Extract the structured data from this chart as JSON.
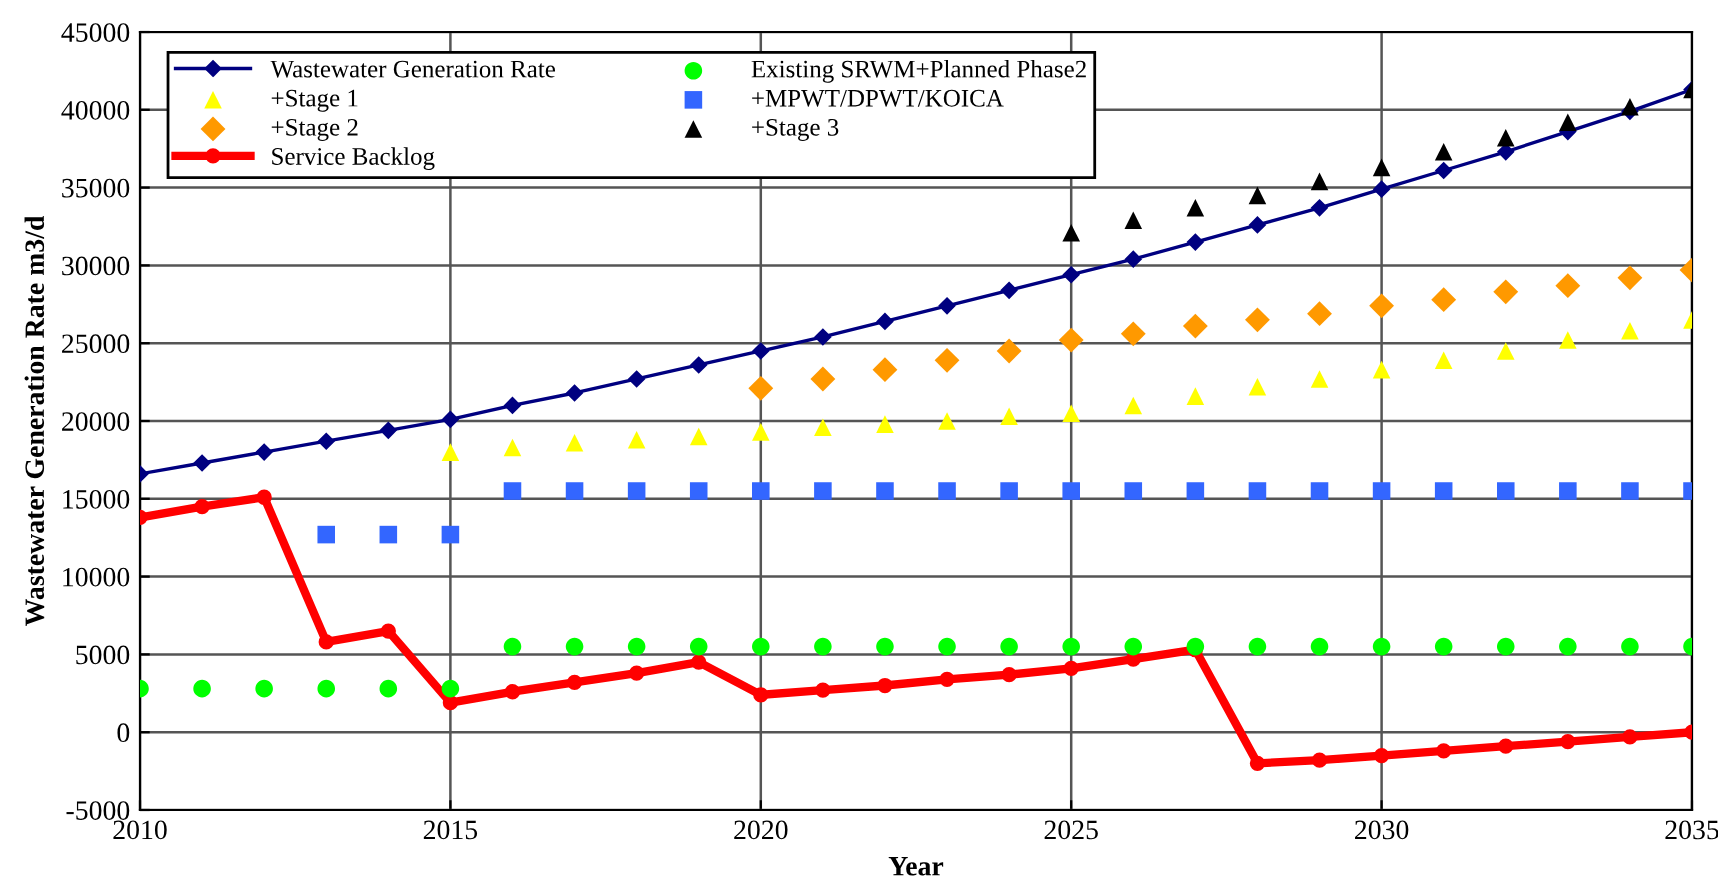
{
  "chart_data": {
    "type": "line",
    "xlabel": "Year",
    "ylabel": "Wastewater Generation Rate m3/d",
    "x": [
      2010,
      2011,
      2012,
      2013,
      2014,
      2015,
      2016,
      2017,
      2018,
      2019,
      2020,
      2021,
      2022,
      2023,
      2024,
      2025,
      2026,
      2027,
      2028,
      2029,
      2030,
      2031,
      2032,
      2033,
      2034,
      2035
    ],
    "xlim": [
      2010,
      2035
    ],
    "xticks": [
      2010,
      2015,
      2020,
      2025,
      2030,
      2035
    ],
    "ylim": [
      -5000,
      45000
    ],
    "yticks": [
      -5000,
      0,
      5000,
      10000,
      15000,
      20000,
      25000,
      30000,
      35000,
      40000,
      45000
    ],
    "grid": true,
    "legend": "top left",
    "series": [
      {
        "name": "Wastewater Generation Rate",
        "marker": "diamond",
        "color": "#000080",
        "values": [
          16600,
          17300,
          18000,
          18700,
          19400,
          20100,
          21000,
          21800,
          22700,
          23600,
          24500,
          25400,
          26400,
          27400,
          28400,
          29400,
          30400,
          31500,
          32600,
          33700,
          34900,
          36100,
          37300,
          38600,
          39900,
          41300
        ]
      },
      {
        "name": "+Stage 1",
        "type": "scatter",
        "marker": "triangle",
        "color": "#ffff00",
        "values": [
          null,
          null,
          null,
          null,
          null,
          18000,
          18300,
          18600,
          18800,
          19000,
          19300,
          19600,
          19800,
          20000,
          20300,
          20500,
          21000,
          21600,
          22200,
          22700,
          23300,
          23900,
          24500,
          25200,
          25800,
          26500
        ]
      },
      {
        "name": "+Stage 2",
        "type": "scatter",
        "marker": "diamond",
        "color": "#ff9900",
        "values": [
          null,
          null,
          null,
          null,
          null,
          null,
          null,
          null,
          null,
          null,
          22100,
          22700,
          23300,
          23900,
          24500,
          25200,
          25600,
          26100,
          26500,
          26900,
          27400,
          27800,
          28300,
          28700,
          29200,
          29700
        ]
      },
      {
        "name": "Service Backlog",
        "marker": "circle",
        "color": "#ff0000",
        "values": [
          13800,
          14500,
          15100,
          5800,
          6500,
          1900,
          2600,
          3200,
          3800,
          4500,
          2400,
          2700,
          3000,
          3400,
          3700,
          4100,
          4700,
          5300,
          -2000,
          -1800,
          -1500,
          -1200,
          -900,
          -600,
          -300,
          0
        ]
      },
      {
        "name": "Existing SRWM+Planned Phase2",
        "type": "scatter",
        "marker": "circle",
        "color": "#00ff00",
        "values": [
          2800,
          2800,
          2800,
          2800,
          2800,
          2800,
          5500,
          5500,
          5500,
          5500,
          5500,
          5500,
          5500,
          5500,
          5500,
          5500,
          5500,
          5500,
          5500,
          5500,
          5500,
          5500,
          5500,
          5500,
          5500,
          5500
        ]
      },
      {
        "name": "+MPWT/DPWT/KOICA",
        "type": "scatter",
        "marker": "square",
        "color": "#3366ff",
        "values": [
          null,
          null,
          null,
          12700,
          12700,
          12700,
          15500,
          15500,
          15500,
          15500,
          15500,
          15500,
          15500,
          15500,
          15500,
          15500,
          15500,
          15500,
          15500,
          15500,
          15500,
          15500,
          15500,
          15500,
          15500,
          15500
        ]
      },
      {
        "name": "+Stage 3",
        "type": "scatter",
        "marker": "triangle",
        "color": "#000000",
        "values": [
          null,
          null,
          null,
          null,
          null,
          null,
          null,
          null,
          null,
          null,
          null,
          null,
          null,
          null,
          null,
          32100,
          32900,
          33700,
          34500,
          35400,
          36300,
          37300,
          38200,
          39200,
          40200,
          41300
        ]
      }
    ]
  }
}
